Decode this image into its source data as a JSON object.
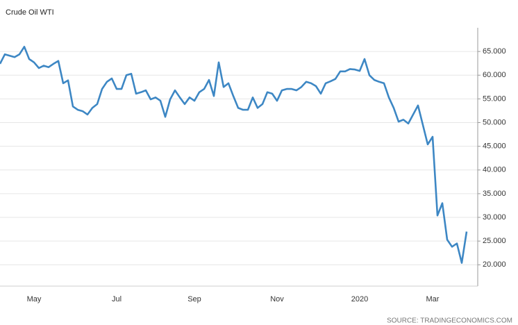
{
  "chart_data": {
    "type": "line",
    "title": "Crude Oil WTI",
    "source": "SOURCE: TRADINGECONOMICS.COM",
    "categories": [
      null,
      null,
      null,
      null,
      null,
      null,
      null,
      "May",
      null,
      null,
      null,
      null,
      null,
      null,
      null,
      null,
      null,
      null,
      null,
      null,
      null,
      null,
      null,
      null,
      "Jul",
      null,
      null,
      null,
      null,
      null,
      null,
      null,
      null,
      null,
      null,
      null,
      null,
      null,
      null,
      null,
      "Sep",
      null,
      null,
      null,
      null,
      null,
      null,
      null,
      null,
      null,
      null,
      null,
      null,
      null,
      null,
      null,
      null,
      "Nov",
      null,
      null,
      null,
      null,
      null,
      null,
      null,
      null,
      null,
      null,
      null,
      null,
      null,
      null,
      null,
      null,
      "2020",
      null,
      null,
      null,
      null,
      null,
      null,
      null,
      null,
      null,
      null,
      null,
      null,
      null,
      null,
      "Mar",
      null,
      null,
      null,
      null,
      null,
      null,
      null
    ],
    "series": [
      {
        "name": "Crude Oil WTI",
        "color": "#3d87c4",
        "values": [
          62.4,
          64.4,
          64.1,
          63.8,
          64.4,
          66.0,
          63.4,
          62.7,
          61.5,
          62.0,
          61.7,
          62.4,
          63.0,
          58.3,
          58.9,
          53.4,
          52.7,
          52.4,
          51.7,
          53.1,
          53.9,
          57.1,
          58.6,
          59.3,
          57.1,
          57.1,
          60.0,
          60.3,
          56.1,
          56.4,
          56.8,
          54.9,
          55.3,
          54.6,
          51.2,
          54.9,
          56.8,
          55.3,
          53.9,
          55.3,
          54.6,
          56.4,
          57.1,
          59.0,
          55.6,
          62.7,
          57.5,
          58.3,
          55.6,
          53.1,
          52.7,
          52.7,
          55.3,
          53.1,
          53.9,
          56.4,
          56.1,
          54.6,
          56.8,
          57.1,
          57.1,
          56.8,
          57.5,
          58.6,
          58.3,
          57.7,
          56.1,
          58.3,
          58.7,
          59.2,
          60.8,
          60.8,
          61.3,
          61.2,
          60.9,
          63.4,
          60.0,
          59.0,
          58.6,
          58.3,
          55.3,
          53.1,
          50.2,
          50.6,
          49.8,
          51.7,
          53.6,
          49.5,
          45.4,
          47.0,
          30.4,
          33.0,
          25.3,
          23.8,
          24.5,
          20.4,
          27.0
        ]
      }
    ],
    "ylim": [
      15.5,
      70
    ],
    "yticks": [
      {
        "value": 20,
        "label": "20.000"
      },
      {
        "value": 25,
        "label": "25.000"
      },
      {
        "value": 30,
        "label": "30.000"
      },
      {
        "value": 35,
        "label": "35.000"
      },
      {
        "value": 40,
        "label": "40.000"
      },
      {
        "value": 45,
        "label": "45.000"
      },
      {
        "value": 50,
        "label": "50.000"
      },
      {
        "value": 55,
        "label": "55.000"
      },
      {
        "value": 60,
        "label": "60.000"
      },
      {
        "value": 65,
        "label": "65.000"
      }
    ],
    "grid": true
  }
}
